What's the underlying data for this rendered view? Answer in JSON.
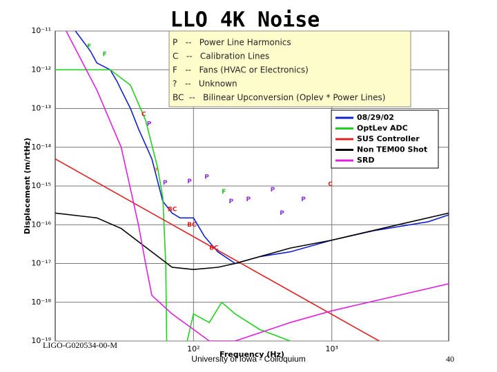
{
  "chart_data": {
    "type": "line",
    "title": "LLO 4K Noise",
    "x_label": "Frequency (Hz)",
    "y_label": "Displacement (m/rtHz)",
    "log_x": true,
    "log_y": true,
    "grid": true,
    "legend": "upper right",
    "xlim": [
      10,
      7000
    ],
    "ylim": [
      1e-19,
      1e-11
    ],
    "xticks": [
      {
        "value": 100,
        "label": "10²"
      },
      {
        "value": 1000,
        "label": "10³"
      }
    ],
    "yticks": [
      {
        "value": 1e-11,
        "label": "10⁻¹¹"
      },
      {
        "value": 1e-12,
        "label": "10⁻¹²"
      },
      {
        "value": 1e-13,
        "label": "10⁻¹³"
      },
      {
        "value": 1e-14,
        "label": "10⁻¹⁴"
      },
      {
        "value": 1e-15,
        "label": "10⁻¹⁵"
      },
      {
        "value": 1e-16,
        "label": "10⁻¹⁶"
      },
      {
        "value": 1e-17,
        "label": "10⁻¹⁷"
      },
      {
        "value": 1e-18,
        "label": "10⁻¹⁸"
      },
      {
        "value": 1e-19,
        "label": "10⁻¹⁹"
      }
    ],
    "series": [
      {
        "name": "08/29/02",
        "color": "#1020d0",
        "x": [
          14,
          18,
          20,
          25,
          28,
          30,
          35,
          40,
          50,
          60,
          70,
          80,
          100,
          120,
          150,
          200,
          300,
          500,
          1000,
          2000,
          5000,
          7000
        ],
        "values": [
          1e-11,
          3e-12,
          1.5e-12,
          1e-12,
          5e-13,
          3e-13,
          1e-13,
          3e-14,
          5e-15,
          4e-16,
          2e-16,
          1.5e-16,
          1.5e-16,
          5e-17,
          2e-17,
          1e-17,
          1.5e-17,
          2e-17,
          4e-17,
          7e-17,
          1.2e-16,
          1.8e-16
        ]
      },
      {
        "name": "OptLev ADC",
        "color": "#20d020",
        "x": [
          10,
          25,
          35,
          45,
          55,
          60,
          63,
          64,
          70,
          90,
          100,
          130,
          160,
          200,
          300,
          500,
          800
        ],
        "values": [
          1e-12,
          1e-12,
          4e-13,
          5e-14,
          3e-15,
          5e-16,
          1e-17,
          1e-19,
          null,
          1e-19,
          5e-19,
          3e-19,
          1e-18,
          5e-19,
          2e-19,
          1e-19,
          null
        ]
      },
      {
        "name": "SUS Controller",
        "color": "#e02020",
        "x": [
          10,
          2200
        ],
        "values": [
          5e-15,
          1e-19
        ]
      },
      {
        "name": "Non TEM00 Shot",
        "color": "#000000",
        "x": [
          10,
          20,
          30,
          50,
          70,
          100,
          150,
          200,
          300,
          500,
          1000,
          3000,
          7000
        ],
        "values": [
          2e-16,
          1.5e-16,
          8e-17,
          2e-17,
          8e-18,
          7e-18,
          8e-18,
          1e-17,
          1.5e-17,
          2.5e-17,
          4e-17,
          1e-16,
          2e-16
        ]
      },
      {
        "name": "SRD",
        "color": "#e020e0",
        "x": [
          12,
          20,
          30,
          40,
          45,
          50,
          70,
          100,
          130,
          200,
          500,
          1000,
          7000
        ],
        "values": [
          1e-11,
          3e-13,
          1e-14,
          1e-16,
          1e-17,
          1.5e-18,
          5e-19,
          2e-19,
          1e-19,
          1e-19,
          3e-19,
          6e-19,
          3e-18
        ]
      }
    ],
    "notes": [
      "P   --   Power Line Harmonics",
      "C   --   Calibration Lines",
      "F   --   Fans (HVAC or Electronics)",
      "?   --   Unknown",
      "BC  --   Bilinear Upconversion (Oplev * Power Lines)"
    ],
    "annotations": [
      {
        "text": "F",
        "x": 17,
        "y": 4e-12,
        "color": "#20c020"
      },
      {
        "text": "F",
        "x": 22,
        "y": 2.5e-12,
        "color": "#20c020"
      },
      {
        "text": "C",
        "x": 42,
        "y": 7e-14,
        "color": "#e02020"
      },
      {
        "text": "P",
        "x": 46,
        "y": 4e-14,
        "color": "#9030e0"
      },
      {
        "text": "?",
        "x": 52,
        "y": 2.5e-15,
        "color": "#e08020"
      },
      {
        "text": "P",
        "x": 60,
        "y": 1.2e-15,
        "color": "#9030e0"
      },
      {
        "text": "P",
        "x": 90,
        "y": 1.3e-15,
        "color": "#9030e0"
      },
      {
        "text": "P",
        "x": 120,
        "y": 1.7e-15,
        "color": "#9030e0"
      },
      {
        "text": "F",
        "x": 160,
        "y": 7e-16,
        "color": "#20c020"
      },
      {
        "text": "BC",
        "x": 65,
        "y": 2.5e-16,
        "color": "#e02020"
      },
      {
        "text": "BC",
        "x": 90,
        "y": 1e-16,
        "color": "#e02020"
      },
      {
        "text": "BC",
        "x": 130,
        "y": 2.5e-17,
        "color": "#e02020"
      },
      {
        "text": "P",
        "x": 180,
        "y": 4e-16,
        "color": "#9030e0"
      },
      {
        "text": "P",
        "x": 240,
        "y": 4.5e-16,
        "color": "#9030e0"
      },
      {
        "text": "P",
        "x": 360,
        "y": 8e-16,
        "color": "#9030e0"
      },
      {
        "text": "P",
        "x": 420,
        "y": 2e-16,
        "color": "#9030e0"
      },
      {
        "text": "P",
        "x": 600,
        "y": 4.5e-16,
        "color": "#9030e0"
      },
      {
        "text": "C",
        "x": 940,
        "y": 1.1e-15,
        "color": "#e02020"
      }
    ]
  },
  "footer": {
    "left": "LIGO-G020534-00-M",
    "center": "University of Iowa - Colloquium",
    "page": "40"
  }
}
